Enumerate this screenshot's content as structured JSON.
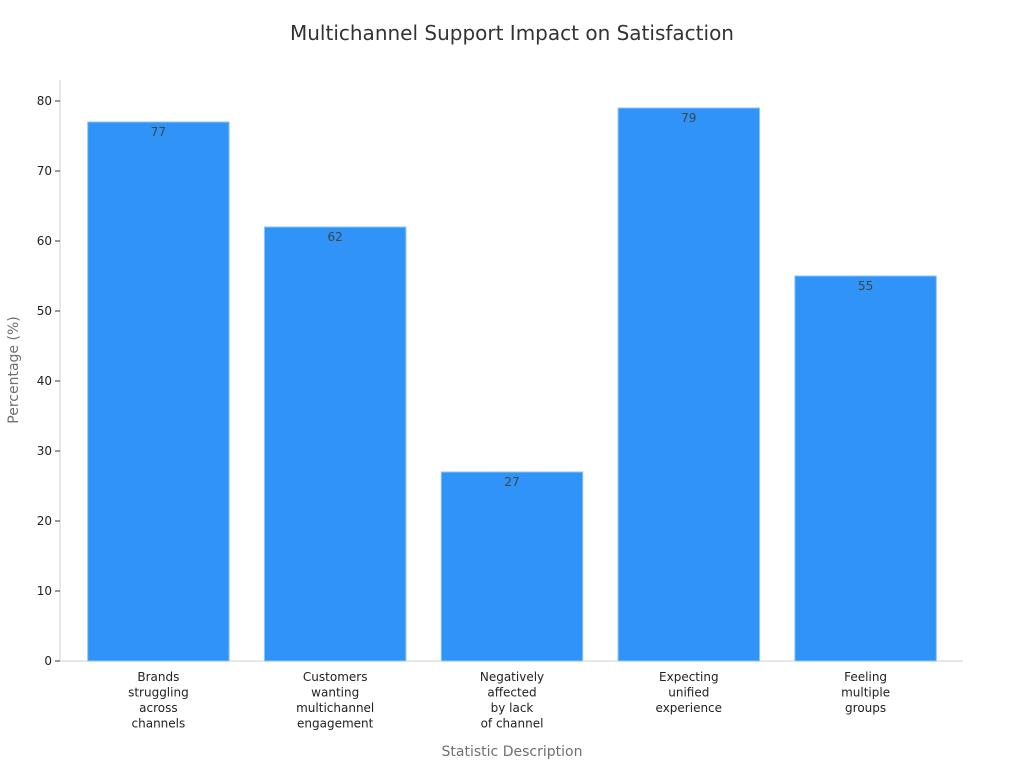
{
  "chart_data": {
    "type": "bar",
    "title": "Multichannel Support Impact on Satisfaction",
    "xlabel": "Statistic Description",
    "ylabel": "Percentage (%)",
    "ylim": [
      0,
      83
    ],
    "yticks": [
      0,
      10,
      20,
      30,
      40,
      50,
      60,
      70,
      80
    ],
    "categories": [
      [
        "Brands",
        "struggling",
        "across",
        "channels"
      ],
      [
        "Customers",
        "wanting",
        "multichannel",
        "engagement"
      ],
      [
        "Negatively",
        "affected",
        "by lack",
        "of channel"
      ],
      [
        "Expecting",
        "unified",
        "experience"
      ],
      [
        "Feeling",
        "multiple",
        "groups"
      ]
    ],
    "values": [
      77,
      62,
      27,
      79,
      55
    ],
    "bar_color": "#2f93f7",
    "grid": false,
    "legend": "none"
  }
}
